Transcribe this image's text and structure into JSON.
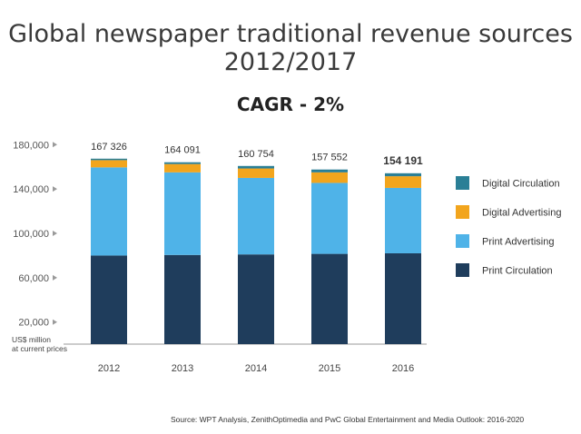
{
  "title_line1": "Global newspaper traditional revenue sources",
  "title_line2": "2012/2017",
  "subtitle": "CAGR - 2%",
  "unit_line1": "US$ million",
  "unit_line2": "at current prices",
  "source": "Source: WPT Analysis, ZenithOptimedia and PwC Global Entertainment and Media Outlook: 2016-2020",
  "chart_data": {
    "type": "bar",
    "stacked": true,
    "title": "Global newspaper traditional revenue sources 2012/2017",
    "subtitle": "CAGR - 2%",
    "ylabel": "US$ million at current prices",
    "ylim": [
      10000,
      180000
    ],
    "yticks": [
      20000,
      60000,
      100000,
      140000,
      180000
    ],
    "ytick_labels": [
      "20,000",
      "60,000",
      "100,000",
      "140,000",
      "180,000"
    ],
    "categories": [
      "2012",
      "2013",
      "2014",
      "2015",
      "2016"
    ],
    "totals": [
      "167 326",
      "164 091",
      "160 754",
      "157 552",
      "154 191"
    ],
    "totals_bold_index": 4,
    "series": [
      {
        "name": "Print Circulation",
        "color": "#1f3d5c",
        "values": [
          80000,
          80500,
          81000,
          81500,
          82000
        ]
      },
      {
        "name": "Print Advertising",
        "color": "#4fb3e8",
        "values": [
          79500,
          74500,
          69000,
          64000,
          59000
        ]
      },
      {
        "name": "Digital Advertising",
        "color": "#f2a51d",
        "values": [
          6500,
          7500,
          8500,
          9500,
          10500
        ]
      },
      {
        "name": "Digital Circulation",
        "color": "#2a7f96",
        "values": [
          1326,
          1591,
          2254,
          2552,
          2691
        ]
      }
    ],
    "legend_order": [
      "Digital Circulation",
      "Digital Advertising",
      "Print Advertising",
      "Print Circulation"
    ],
    "legend_position": "right",
    "grid": false
  }
}
